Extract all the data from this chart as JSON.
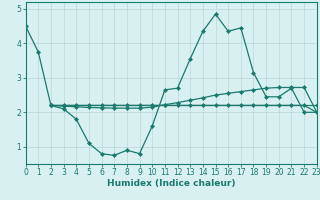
{
  "line1_x": [
    0,
    1,
    2,
    3,
    4,
    5,
    6,
    7,
    8,
    9,
    10,
    11,
    12,
    13,
    14,
    15,
    16,
    17,
    18,
    19,
    20,
    21,
    22,
    23
  ],
  "line1_y": [
    4.5,
    3.75,
    2.2,
    2.1,
    1.8,
    1.1,
    0.8,
    0.75,
    0.9,
    0.8,
    1.6,
    2.65,
    2.7,
    3.55,
    4.35,
    4.85,
    4.35,
    4.45,
    3.15,
    2.45,
    2.45,
    2.7,
    2.0,
    2.0
  ],
  "line2_x": [
    2,
    3,
    4,
    5,
    6,
    7,
    8,
    9,
    10,
    11,
    12,
    13,
    14,
    15,
    16,
    17,
    18,
    19,
    20,
    21,
    22,
    23
  ],
  "line2_y": [
    2.2,
    2.18,
    2.16,
    2.14,
    2.13,
    2.12,
    2.12,
    2.12,
    2.15,
    2.22,
    2.28,
    2.35,
    2.42,
    2.5,
    2.55,
    2.6,
    2.65,
    2.7,
    2.72,
    2.72,
    2.72,
    2.0
  ],
  "line3_x": [
    2,
    3,
    4,
    5,
    6,
    7,
    8,
    9,
    10,
    11,
    12,
    13,
    14,
    15,
    16,
    17,
    18,
    19,
    20,
    21,
    22,
    23
  ],
  "line3_y": [
    2.2,
    2.2,
    2.2,
    2.2,
    2.2,
    2.2,
    2.2,
    2.2,
    2.2,
    2.2,
    2.2,
    2.2,
    2.2,
    2.2,
    2.2,
    2.2,
    2.2,
    2.2,
    2.2,
    2.2,
    2.2,
    2.0
  ],
  "line4_x": [
    2,
    23
  ],
  "line4_y": [
    2.2,
    2.2
  ],
  "color": "#1a7a6e",
  "bg_color": "#d8f0f0",
  "grid_color": "#b8d8d8",
  "xlabel": "Humidex (Indice chaleur)",
  "xlim": [
    0,
    23
  ],
  "ylim": [
    0.5,
    5.2
  ],
  "yticks": [
    1,
    2,
    3,
    4,
    5
  ],
  "xticks": [
    0,
    1,
    2,
    3,
    4,
    5,
    6,
    7,
    8,
    9,
    10,
    11,
    12,
    13,
    14,
    15,
    16,
    17,
    18,
    19,
    20,
    21,
    22,
    23
  ],
  "xtick_labels": [
    "0",
    "1",
    "2",
    "3",
    "4",
    "5",
    "6",
    "7",
    "8",
    "9",
    "10",
    "11",
    "12",
    "13",
    "14",
    "15",
    "16",
    "17",
    "18",
    "19",
    "20",
    "21",
    "22",
    "23"
  ],
  "marker": "D",
  "markersize": 2.0,
  "linewidth": 0.9,
  "axis_fontsize": 6.5,
  "tick_fontsize": 5.5
}
